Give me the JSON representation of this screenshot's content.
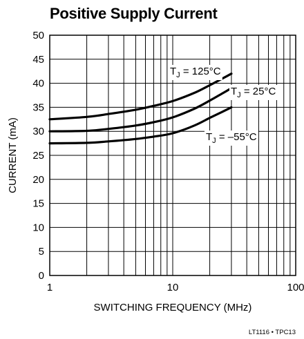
{
  "chart_data": {
    "type": "line",
    "title": "Positive Supply Current",
    "xlabel": "SWITCHING FREQUENCY (MHz)",
    "ylabel": "CURRENT (mA)",
    "x_scale": "log",
    "xlim": [
      1,
      100
    ],
    "ylim": [
      0,
      50
    ],
    "x_ticks": [
      "1",
      "10",
      "100"
    ],
    "y_ticks": [
      "0",
      "5",
      "10",
      "15",
      "20",
      "25",
      "30",
      "35",
      "40",
      "45",
      "50"
    ],
    "grid": true,
    "series": [
      {
        "name": "TJ = 125°C",
        "label_main": "T",
        "label_sub": "J",
        "label_rest": " = 125°C",
        "x": [
          1,
          2,
          3,
          5,
          7,
          10,
          15,
          20,
          25,
          30
        ],
        "y": [
          32.5,
          33.0,
          33.6,
          34.5,
          35.3,
          36.3,
          38.0,
          39.6,
          40.9,
          42.0
        ]
      },
      {
        "name": "TJ = 25°C",
        "label_main": "T",
        "label_sub": "J",
        "label_rest": " = 25°C",
        "x": [
          1,
          2,
          3,
          5,
          7,
          10,
          15,
          20,
          25,
          30
        ],
        "y": [
          30.0,
          30.1,
          30.5,
          31.2,
          31.9,
          32.9,
          34.7,
          36.4,
          37.8,
          39.0
        ]
      },
      {
        "name": "TJ = –55°C",
        "label_main": "T",
        "label_sub": "J",
        "label_rest": " = –55°C",
        "x": [
          1,
          2,
          3,
          5,
          7,
          10,
          15,
          20,
          25,
          30
        ],
        "y": [
          27.5,
          27.6,
          27.9,
          28.4,
          28.9,
          29.6,
          31.2,
          32.8,
          34.0,
          35.0
        ]
      }
    ],
    "footnote": "LT1116 • TPC13"
  }
}
